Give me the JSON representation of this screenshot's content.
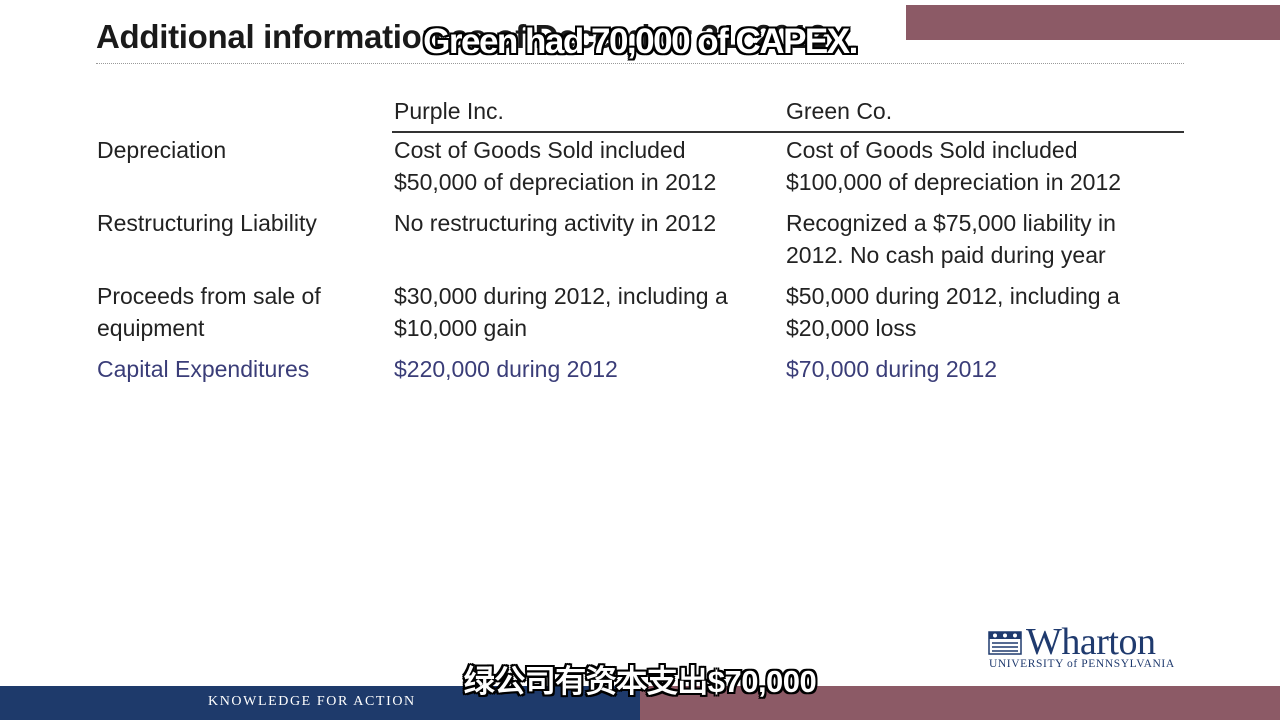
{
  "slide": {
    "title": "Additional information as of December 31, 2012",
    "columns": {
      "purple": "Purple Inc.",
      "green": "Green Co."
    },
    "rows": [
      {
        "label": [
          "Depreciation"
        ],
        "purple": [
          "Cost of Goods Sold included",
          "$50,000 of depreciation in 2012"
        ],
        "green": [
          "Cost of Goods Sold included",
          "$100,000 of depreciation in 2012"
        ]
      },
      {
        "label": [
          "Restructuring Liability"
        ],
        "purple": [
          "No restructuring activity in 2012"
        ],
        "green": [
          "Recognized a $75,000 liability in",
          "2012.  No cash paid during year"
        ]
      },
      {
        "label": [
          "Proceeds from sale of",
          "equipment"
        ],
        "purple": [
          "$30,000 during 2012, including a",
          "$10,000 gain"
        ],
        "green": [
          "$50,000 during 2012, including a",
          "$20,000 loss"
        ]
      },
      {
        "label": [
          "Capital Expenditures"
        ],
        "purple": [
          "$220,000 during 2012"
        ],
        "green": [
          "$70,000 during 2012"
        ]
      }
    ]
  },
  "logo": {
    "name": "Wharton",
    "subtitle": "UNIVERSITY of PENNSYLVANIA"
  },
  "footer": {
    "tagline": "KNOWLEDGE FOR ACTION"
  },
  "captions": {
    "english": "Green had 70,000 of CAPEX.",
    "chinese": "绿公司有资本支出$70,000"
  },
  "colors": {
    "accent_text": "#3a3d78",
    "footer_blue": "#1e3a6b",
    "footer_red": "#8c5a66"
  }
}
